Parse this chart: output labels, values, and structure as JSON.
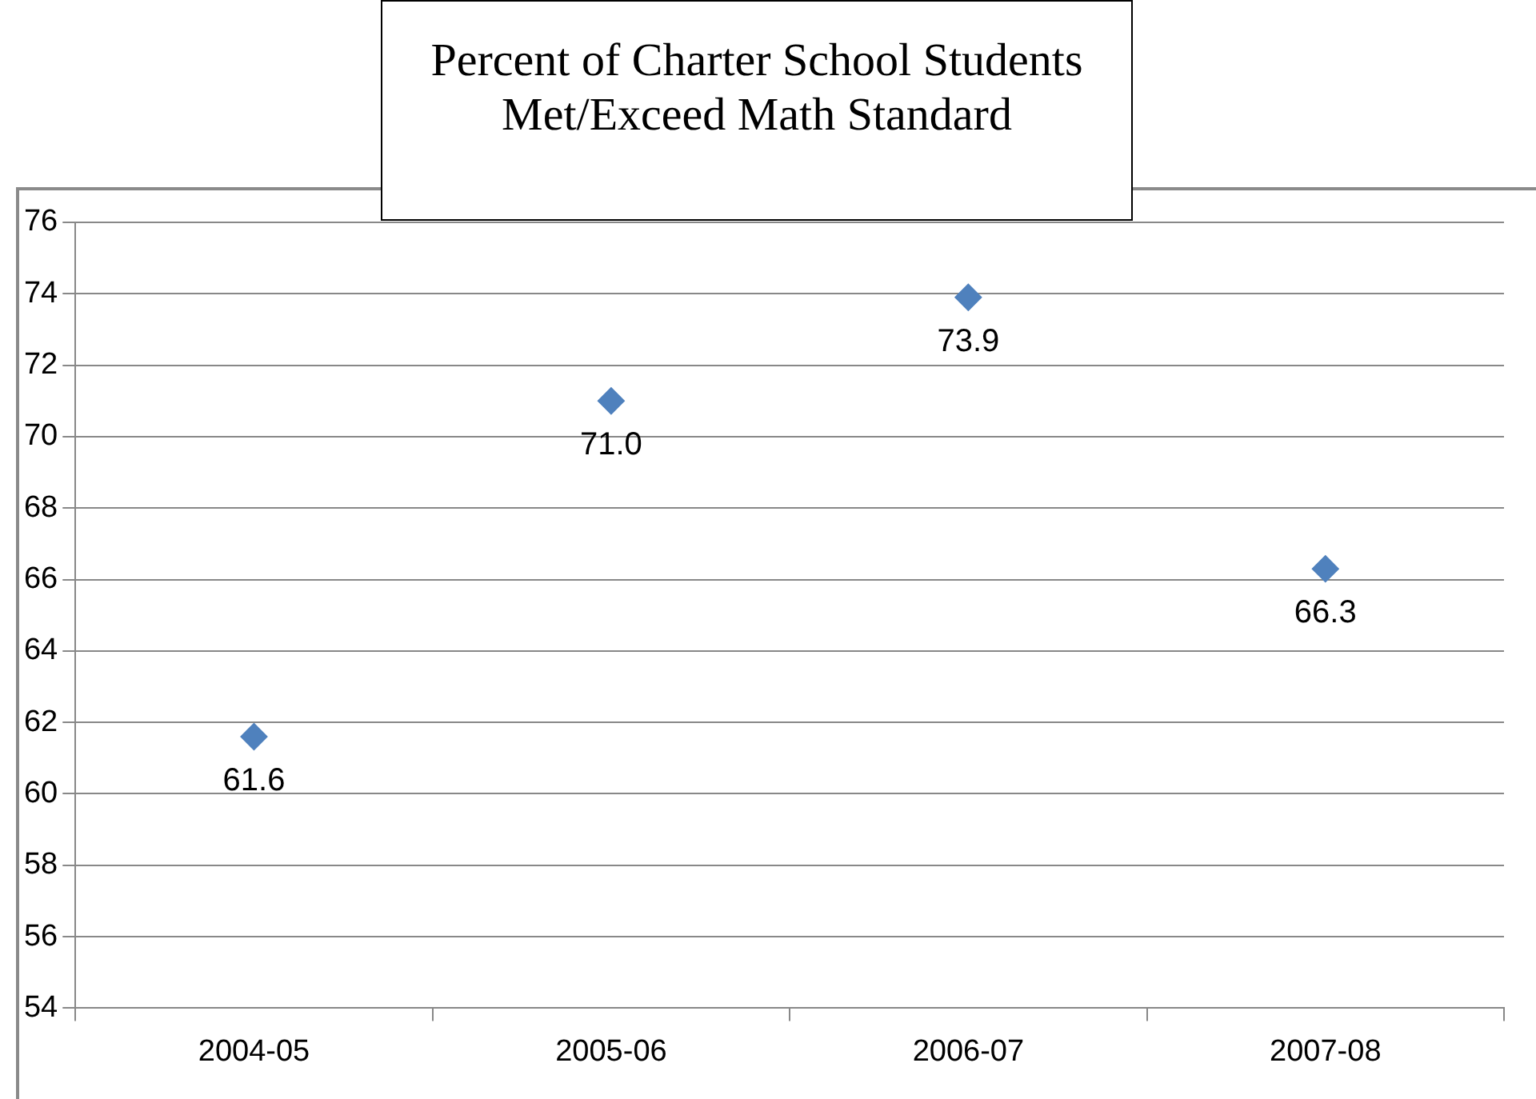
{
  "chart_data": {
    "type": "scatter",
    "title": "Percent of Charter School Students Met/Exceed Math Standard",
    "categories": [
      "2004-05",
      "2005-06",
      "2006-07",
      "2007-08"
    ],
    "values": [
      61.6,
      71.0,
      73.9,
      66.3
    ],
    "value_labels": [
      "61.6",
      "71.0",
      "73.9",
      "66.3"
    ],
    "color": "#4f81bd",
    "marker": "diamond",
    "ylim": [
      54,
      76
    ],
    "yticks": [
      54,
      56,
      58,
      60,
      62,
      64,
      66,
      68,
      70,
      72,
      74,
      76
    ],
    "grid": "y"
  }
}
